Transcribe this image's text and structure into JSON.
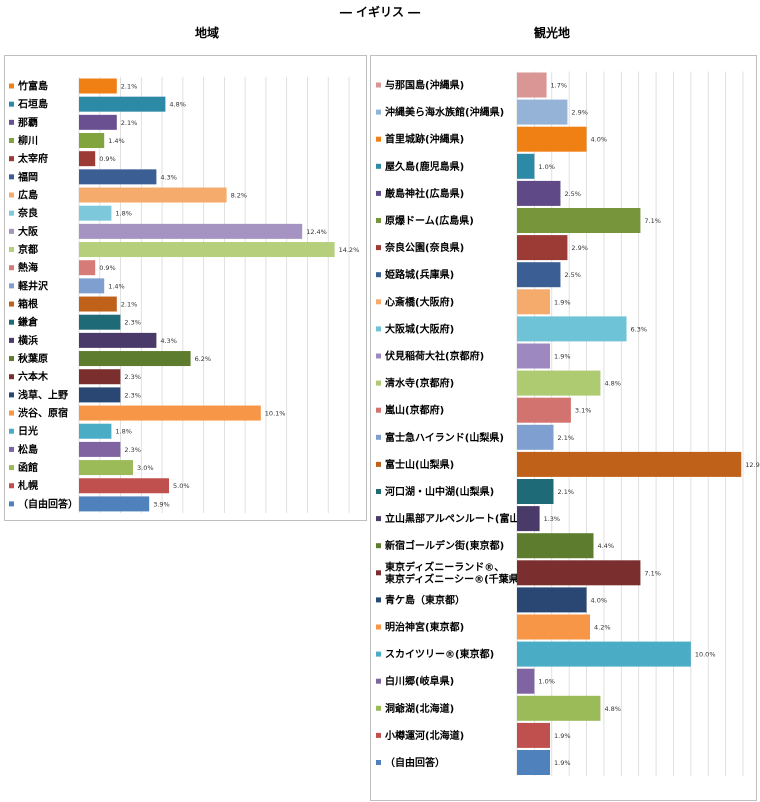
{
  "page": {
    "title": "― イギリス ―"
  },
  "chart_data": [
    {
      "type": "bar",
      "orientation": "horizontal",
      "title": "地域",
      "value_format": "percent",
      "xlim": [
        0,
        15
      ],
      "grid": true,
      "legend": "none",
      "categories": [
        "竹富島",
        "石垣島",
        "那覇",
        "柳川",
        "太宰府",
        "福岡",
        "広島",
        "奈良",
        "大阪",
        "京都",
        "熱海",
        "軽井沢",
        "箱根",
        "鎌倉",
        "横浜",
        "秋葉原",
        "六本木",
        "浅草、上野",
        "渋谷、原宿",
        "日光",
        "松島",
        "函館",
        "札幌",
        "（自由回答）"
      ],
      "values": [
        2.1,
        4.8,
        2.1,
        1.4,
        0.9,
        4.3,
        8.2,
        1.8,
        12.4,
        14.2,
        0.9,
        1.4,
        2.1,
        2.3,
        4.3,
        6.2,
        2.3,
        2.3,
        10.1,
        1.8,
        2.3,
        3.0,
        5.0,
        3.9
      ],
      "value_labels": [
        "2.1%",
        "4.8%",
        "2.1%",
        "1.4%",
        "0.9%",
        "4.3%",
        "8.2%",
        "1.8%",
        "12.4%",
        "14.2%",
        "0.9%",
        "1.4%",
        "2.1%",
        "2.3%",
        "4.3%",
        "6.2%",
        "2.3%",
        "2.3%",
        "10.1%",
        "1.8%",
        "2.3%",
        "3.0%",
        "5.0%",
        "3.9%"
      ],
      "colors": [
        "#f07f14",
        "#2c8aa6",
        "#6a4f91",
        "#82a43e",
        "#9c3a36",
        "#3b5f95",
        "#f5ab6c",
        "#7ec8dc",
        "#a593c2",
        "#b6cf7c",
        "#d77b78",
        "#7e9fd0",
        "#c0611a",
        "#1f6a77",
        "#4a3a69",
        "#5e7c2e",
        "#7a2f2e",
        "#2a4673",
        "#f79646",
        "#4bacc6",
        "#8064a2",
        "#9bbb59",
        "#c0504d",
        "#4f81bd"
      ]
    },
    {
      "type": "bar",
      "orientation": "horizontal",
      "title": "観光地",
      "value_format": "percent",
      "xlim": [
        0,
        13
      ],
      "grid": true,
      "legend": "none",
      "categories": [
        "与那国島(沖縄県)",
        "沖縄美ら海水族館(沖縄県)",
        "首里城跡(沖縄県)",
        "屋久島(鹿児島県)",
        "厳島神社(広島県)",
        "原爆ドーム(広島県)",
        "奈良公園(奈良県)",
        "姫路城(兵庫県)",
        "心斎橋(大阪府)",
        "大阪城(大阪府)",
        "伏見稲荷大社(京都府)",
        "清水寺(京都府)",
        "嵐山(京都府)",
        "富士急ハイランド(山梨県)",
        "富士山(山梨県)",
        "河口湖・山中湖(山梨県)",
        "立山黒部アルペンルート(富山県)",
        "新宿ゴールデン街(東京都)",
        "東京ディズニーランド®、東京ディズニーシー®(千葉県)",
        "青ケ島（東京都）",
        "明治神宮(東京都)",
        "スカイツリー®(東京都)",
        "白川郷(岐阜県)",
        "洞爺湖(北海道)",
        "小樽運河(北海道)",
        "（自由回答）"
      ],
      "values": [
        1.7,
        2.9,
        4.0,
        1.0,
        2.5,
        7.1,
        2.9,
        2.5,
        1.9,
        6.3,
        1.9,
        4.8,
        3.1,
        2.1,
        12.9,
        2.1,
        1.3,
        4.4,
        7.1,
        4.0,
        4.2,
        10.0,
        1.0,
        4.8,
        1.9,
        1.9
      ],
      "value_labels": [
        "1.7%",
        "2.9%",
        "4.0%",
        "1.0%",
        "2.5%",
        "7.1%",
        "2.9%",
        "2.5%",
        "1.9%",
        "6.3%",
        "1.9%",
        "4.8%",
        "3.1%",
        "2.1%",
        "12.9%",
        "2.1%",
        "1.3%",
        "4.4%",
        "7.1%",
        "4.0%",
        "4.2%",
        "10.0%",
        "1.0%",
        "4.8%",
        "1.9%",
        "1.9%"
      ],
      "colors": [
        "#d99694",
        "#95b3d7",
        "#f07f14",
        "#2c8aa6",
        "#5f4a87",
        "#77963b",
        "#9c3a36",
        "#3b5f95",
        "#f5ab6c",
        "#6fc3d6",
        "#9d89bf",
        "#aecb72",
        "#d37370",
        "#7e9fd0",
        "#c0611a",
        "#1f6a77",
        "#4a3a69",
        "#5e7c2e",
        "#7a2f2e",
        "#2a4673",
        "#f79646",
        "#4bacc6",
        "#8064a2",
        "#9bbb59",
        "#c0504d",
        "#4f81bd"
      ]
    }
  ]
}
